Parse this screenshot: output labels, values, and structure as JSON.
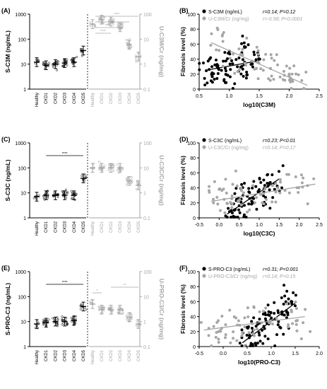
{
  "figure": {
    "rows": [
      {
        "left": {
          "panel_label": "(A)",
          "ylabel_left": "S-C3M (ng/mL)",
          "ylabel_right": "U-C3M/Cr (ng/mg)",
          "left_ticks": [
            "1",
            "10",
            "100",
            "1000"
          ],
          "right_ticks": [
            "0.1",
            "1",
            "10",
            "100"
          ],
          "categories": [
            "Healthy",
            "CKD1",
            "CKD2",
            "CKD3",
            "CKD4",
            "CKD5",
            "Healthy",
            "CKD1",
            "CKD2",
            "CKD3",
            "CKD4",
            "CKD5"
          ],
          "serum_means": [
            12,
            9,
            10,
            11,
            12,
            35
          ],
          "urine_means": [
            40,
            60,
            50,
            30,
            6,
            2
          ],
          "sig_labels": [
            "****",
            "****",
            "****",
            "****"
          ]
        },
        "right": {
          "panel_label": "(B)",
          "legend1": "S-C3M (ng/mL)",
          "stat1": "r=0.14; P=0.12",
          "legend2": "U-C3M/Cr (ng/mg)",
          "stat2": "r=-0.58; P<0.0001",
          "ylabel": "Fibrosis level (%)",
          "xlabel": "log10(C3M)",
          "xticks": [
            "0.5",
            "1.0",
            "1.5",
            "2.0",
            "2.5"
          ],
          "yticks": [
            "0",
            "20",
            "40",
            "60",
            "80",
            "100"
          ]
        }
      },
      {
        "left": {
          "panel_label": "(C)",
          "ylabel_left": "S-C3C (ng/mL)",
          "ylabel_right": "U-C3C/Cr (ng/mg)",
          "left_ticks": [
            "1",
            "10",
            "100",
            "1000"
          ],
          "right_ticks": [
            "0.1",
            "1",
            "10",
            "100"
          ],
          "categories": [
            "Healthy",
            "CKD1",
            "CKD2",
            "CKD3",
            "CKD4",
            "CKD5",
            "Healthy",
            "CKD1",
            "CKD2",
            "CKD3",
            "CKD4",
            "CKD5"
          ],
          "serum_means": [
            7,
            8,
            8,
            8,
            8,
            38
          ],
          "urine_means": [
            10,
            10,
            10,
            10,
            3,
            2
          ],
          "sig_labels": [
            "****"
          ]
        },
        "right": {
          "panel_label": "(D)",
          "legend1": "S-C3C (ng/mL)",
          "stat1": "r=0.23; P<0.01",
          "legend2": "U-C3C/Cr (ng/mg)",
          "stat2": "r=0.14; P=0.17",
          "ylabel": "Fibrosis level (%)",
          "xlabel": "log10(C3C)",
          "xticks": [
            "-0.5",
            "0.0",
            "0.5",
            "1.0",
            "1.5",
            "2.0",
            "2.5"
          ],
          "yticks": [
            "0",
            "20",
            "40",
            "60",
            "80",
            "100"
          ]
        }
      },
      {
        "left": {
          "panel_label": "(E)",
          "ylabel_left": "S-PRO-C3 (ng/mL)",
          "ylabel_right": "U-PRO-C3/Cr (ng/mg)",
          "left_ticks": [
            "1",
            "10",
            "100",
            "1000"
          ],
          "right_ticks": [
            "0.1",
            "1",
            "10",
            "100"
          ],
          "categories": [
            "Healthy",
            "CKD1",
            "CKD2",
            "CKD3",
            "CKD4",
            "CKD5",
            "Healthy",
            "CKD1",
            "CKD2",
            "CKD3",
            "CKD4",
            "CKD5"
          ],
          "serum_means": [
            8,
            9,
            10,
            10,
            11,
            40
          ],
          "urine_means": [
            5,
            3,
            3,
            3,
            1.5,
            0.8
          ],
          "sig_labels": [
            "****",
            "*",
            "**"
          ]
        },
        "right": {
          "panel_label": "(F)",
          "legend1": "S-PRO-C3 (ng/mL)",
          "stat1": "r=0.31; P<0.001",
          "legend2": "U-PRO-C3/Cr (ng/mg)",
          "stat2": "r=0.14; P=0.15",
          "ylabel": "Fibrosis level (%)",
          "xlabel": "log10(PRO-C3)",
          "xticks": [
            "-0.5",
            "0.0",
            "0.5",
            "1.0",
            "1.5",
            "2.0"
          ],
          "yticks": [
            "0",
            "20",
            "40",
            "60",
            "80",
            "100"
          ]
        }
      }
    ],
    "colors": {
      "serum": "#000000",
      "urine": "#a6a6a6"
    }
  },
  "chart_data": [
    {
      "type": "scatter",
      "title": "(A)",
      "ylabel": "S-C3M (ng/mL)",
      "categories": [
        "Healthy",
        "CKD1",
        "CKD2",
        "CKD3",
        "CKD4",
        "CKD5"
      ],
      "series": [
        {
          "name": "S-C3M (ng/mL)",
          "values": [
            12,
            9,
            10,
            11,
            12,
            35
          ]
        },
        {
          "name": "U-C3M/Cr (ng/mg)",
          "values": [
            40,
            60,
            50,
            30,
            6,
            2
          ]
        }
      ],
      "ylim": [
        1,
        1000
      ]
    },
    {
      "type": "scatter",
      "title": "(B)",
      "xlabel": "log10(C3M)",
      "ylabel": "Fibrosis level (%)",
      "xlim": [
        0.5,
        2.5
      ],
      "ylim": [
        0,
        100
      ],
      "series": [
        {
          "name": "S-C3M (ng/mL)",
          "trend": [
            [
              0.6,
              25
            ],
            [
              1.5,
              38
            ]
          ]
        },
        {
          "name": "U-C3M/Cr (ng/mg)",
          "trend": [
            [
              0.7,
              62
            ],
            [
              2.3,
              5
            ]
          ]
        }
      ]
    },
    {
      "type": "scatter",
      "title": "(C)",
      "ylabel": "S-C3C (ng/mL)",
      "categories": [
        "Healthy",
        "CKD1",
        "CKD2",
        "CKD3",
        "CKD4",
        "CKD5"
      ],
      "series": [
        {
          "name": "S-C3C (ng/mL)",
          "values": [
            7,
            8,
            8,
            8,
            8,
            38
          ]
        },
        {
          "name": "U-C3C/Cr (ng/mg)",
          "values": [
            10,
            10,
            10,
            10,
            3,
            2
          ]
        }
      ],
      "ylim": [
        1,
        1000
      ]
    },
    {
      "type": "scatter",
      "title": "(D)",
      "xlabel": "log10(C3C)",
      "ylabel": "Fibrosis level (%)",
      "xlim": [
        -0.5,
        2.5
      ],
      "ylim": [
        0,
        100
      ],
      "series": [
        {
          "name": "S-C3C (ng/mL)",
          "trend": [
            [
              0.2,
              5
            ],
            [
              1.5,
              52
            ]
          ]
        },
        {
          "name": "U-C3C/Cr (ng/mg)",
          "trend": [
            [
              -0.2,
              22
            ],
            [
              2.4,
              45
            ]
          ]
        }
      ]
    },
    {
      "type": "scatter",
      "title": "(E)",
      "ylabel": "S-PRO-C3 (ng/mL)",
      "categories": [
        "Healthy",
        "CKD1",
        "CKD2",
        "CKD3",
        "CKD4",
        "CKD5"
      ],
      "series": [
        {
          "name": "S-PRO-C3 (ng/mL)",
          "values": [
            8,
            9,
            10,
            10,
            11,
            40
          ]
        },
        {
          "name": "U-PRO-C3/Cr (ng/mg)",
          "values": [
            5,
            3,
            3,
            3,
            1.5,
            0.8
          ]
        }
      ],
      "ylim": [
        1,
        1000
      ]
    },
    {
      "type": "scatter",
      "title": "(F)",
      "xlabel": "log10(PRO-C3)",
      "ylabel": "Fibrosis level (%)",
      "xlim": [
        -0.5,
        2.0
      ],
      "ylim": [
        0,
        100
      ],
      "series": [
        {
          "name": "S-PRO-C3 (ng/mL)",
          "trend": [
            [
              0.4,
              5
            ],
            [
              1.5,
              58
            ]
          ]
        },
        {
          "name": "U-PRO-C3/Cr (ng/mg)",
          "trend": [
            [
              -0.4,
              22
            ],
            [
              1.7,
              40
            ]
          ]
        }
      ]
    }
  ]
}
